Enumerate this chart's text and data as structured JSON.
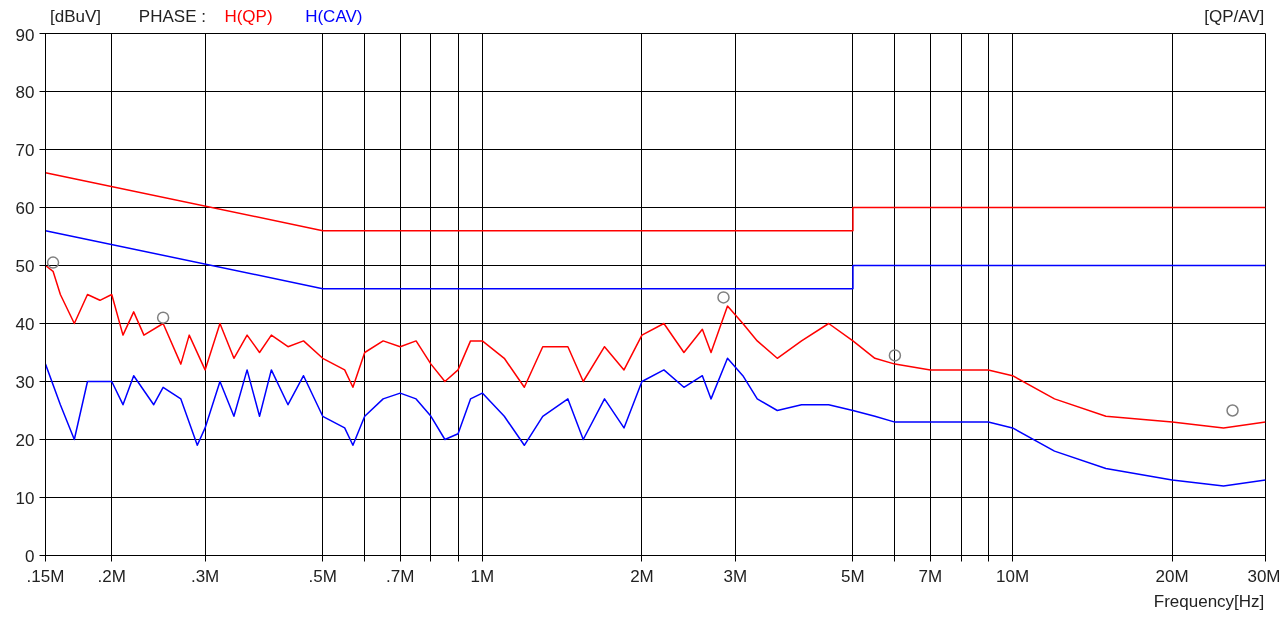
{
  "chart_data": {
    "type": "line",
    "xlabel": "Frequency[Hz]",
    "ylabel": "[dBuV]",
    "legend_title": "PHASE :",
    "annotations": [
      "[QP/AV]"
    ],
    "log": "x",
    "grid": true,
    "xlim": [
      0.15,
      30
    ],
    "ylim": [
      0,
      90
    ],
    "yticks": [
      0,
      10,
      20,
      30,
      40,
      50,
      60,
      70,
      80,
      90
    ],
    "xticks": [
      {
        "value": 0.15,
        "label": ".15M"
      },
      {
        "value": 0.2,
        "label": ".2M"
      },
      {
        "value": 0.3,
        "label": ".3M"
      },
      {
        "value": 0.5,
        "label": ".5M"
      },
      {
        "value": 0.6,
        "label": null
      },
      {
        "value": 0.7,
        "label": ".7M"
      },
      {
        "value": 0.8,
        "label": null
      },
      {
        "value": 0.9,
        "label": null
      },
      {
        "value": 1,
        "label": "1M"
      },
      {
        "value": 2,
        "label": "2M"
      },
      {
        "value": 3,
        "label": "3M"
      },
      {
        "value": 5,
        "label": "5M"
      },
      {
        "value": 6,
        "label": null
      },
      {
        "value": 7,
        "label": "7M"
      },
      {
        "value": 8,
        "label": null
      },
      {
        "value": 9,
        "label": null
      },
      {
        "value": 10,
        "label": "10M"
      },
      {
        "value": 20,
        "label": "20M"
      },
      {
        "value": 30,
        "label": "30M"
      }
    ],
    "series": [
      {
        "color": "#ff0000",
        "x": [
          0.15,
          0.5,
          5,
          5,
          30
        ],
        "values": [
          66,
          56,
          56,
          60,
          60
        ]
      },
      {
        "color": "#0000ff",
        "x": [
          0.15,
          0.5,
          5,
          5,
          30
        ],
        "values": [
          56,
          46,
          46,
          50,
          50
        ]
      },
      {
        "name": "H(QP)",
        "color": "#ff0000",
        "x": [
          0.15,
          0.155,
          0.16,
          0.17,
          0.18,
          0.19,
          0.2,
          0.21,
          0.22,
          0.23,
          0.25,
          0.27,
          0.28,
          0.3,
          0.32,
          0.34,
          0.36,
          0.38,
          0.4,
          0.43,
          0.46,
          0.5,
          0.55,
          0.57,
          0.6,
          0.65,
          0.7,
          0.75,
          0.8,
          0.85,
          0.9,
          0.95,
          1.0,
          1.1,
          1.2,
          1.3,
          1.45,
          1.55,
          1.7,
          1.85,
          2.0,
          2.2,
          2.4,
          2.6,
          2.7,
          2.9,
          3.1,
          3.3,
          3.6,
          4.0,
          4.5,
          5.0,
          5.5,
          6.0,
          7.0,
          8.0,
          9.0,
          10,
          12,
          15,
          20,
          25,
          30
        ],
        "values": [
          50,
          49,
          45,
          40,
          45,
          44,
          45,
          38,
          42,
          38,
          40,
          33,
          38,
          32,
          40,
          34,
          38,
          35,
          38,
          36,
          37,
          34,
          32,
          29,
          35,
          37,
          36,
          37,
          33,
          30,
          32,
          37,
          37,
          34,
          29,
          36,
          36,
          30,
          36,
          32,
          38,
          40,
          35,
          39,
          35,
          43,
          40,
          37,
          34,
          37,
          40,
          37,
          34,
          33,
          32,
          32,
          32,
          31,
          27,
          24,
          23,
          22,
          23
        ]
      },
      {
        "name": "H(CAV)",
        "color": "#0000ff",
        "x": [
          0.15,
          0.16,
          0.17,
          0.18,
          0.2,
          0.21,
          0.22,
          0.24,
          0.25,
          0.27,
          0.29,
          0.3,
          0.32,
          0.34,
          0.36,
          0.38,
          0.4,
          0.43,
          0.46,
          0.5,
          0.55,
          0.57,
          0.6,
          0.65,
          0.7,
          0.75,
          0.8,
          0.85,
          0.9,
          0.95,
          1.0,
          1.1,
          1.2,
          1.3,
          1.45,
          1.55,
          1.7,
          1.85,
          2.0,
          2.2,
          2.4,
          2.6,
          2.7,
          2.9,
          3.1,
          3.3,
          3.6,
          4.0,
          4.5,
          5.0,
          5.5,
          6.0,
          7,
          8,
          9,
          10,
          12,
          15,
          20,
          25,
          30
        ],
        "values": [
          33,
          26,
          20,
          30,
          30,
          26,
          31,
          26,
          29,
          27,
          19,
          22,
          30,
          24,
          32,
          24,
          32,
          26,
          31,
          24,
          22,
          19,
          24,
          27,
          28,
          27,
          24,
          20,
          21,
          27,
          28,
          24,
          19,
          24,
          27,
          20,
          27,
          22,
          30,
          32,
          29,
          31,
          27,
          34,
          31,
          27,
          25,
          26,
          26,
          25,
          24,
          23,
          23,
          23,
          23,
          22,
          18,
          15,
          13,
          12,
          13
        ]
      },
      {
        "type": "scatter",
        "marker": "circle",
        "color": "#808080",
        "x": [
          0.155,
          0.25,
          2.85,
          6.0,
          26
        ],
        "values": [
          50.5,
          41,
          44.5,
          34.5,
          25
        ]
      }
    ]
  }
}
